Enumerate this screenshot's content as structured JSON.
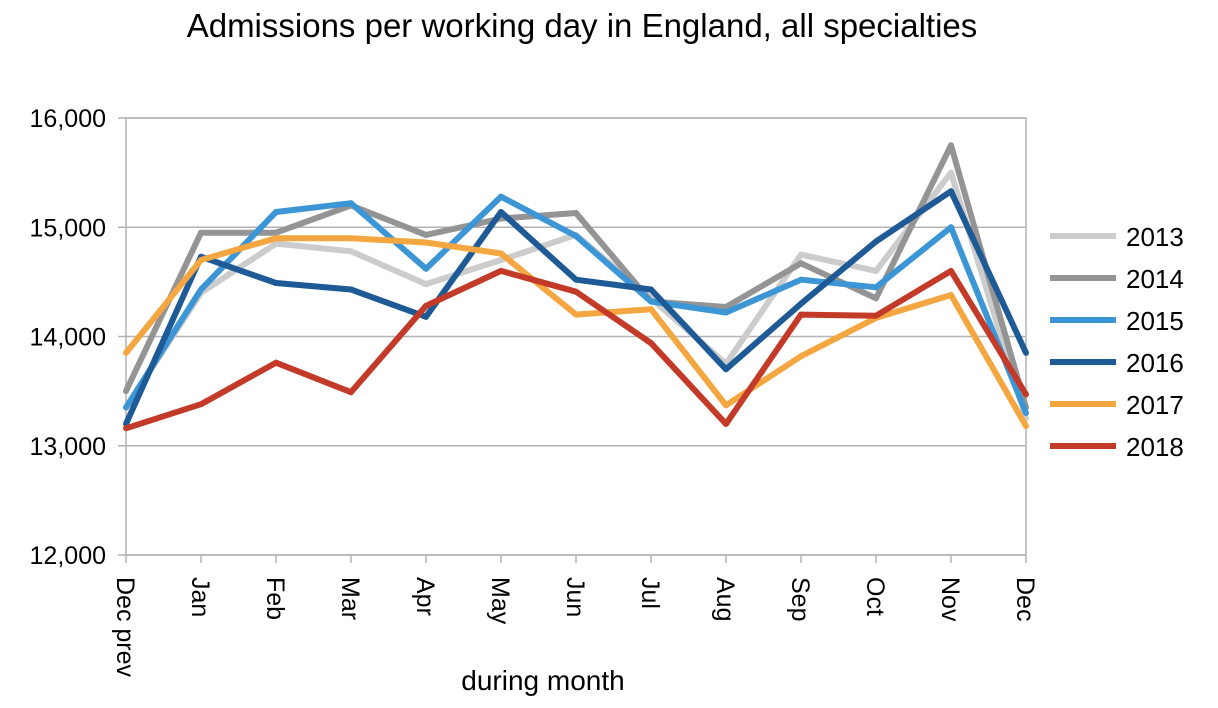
{
  "chart_data": {
    "type": "line",
    "title": "Admissions per working day in England, all specialties",
    "xlabel": "during month",
    "ylabel": "",
    "categories": [
      "Dec prev",
      "Jan",
      "Feb",
      "Mar",
      "Apr",
      "May",
      "Jun",
      "Jul",
      "Aug",
      "Sep",
      "Oct",
      "Nov",
      "Dec"
    ],
    "ylim": [
      12000,
      16000
    ],
    "yticks": [
      12000,
      13000,
      14000,
      15000,
      16000
    ],
    "ytick_labels": [
      "12,000",
      "13,000",
      "14,000",
      "15,000",
      "16,000"
    ],
    "grid": true,
    "legend_position": "right",
    "series": [
      {
        "name": "2013",
        "color": "#cccccc",
        "values": [
          13350,
          14400,
          14850,
          14780,
          14480,
          14700,
          14930,
          14350,
          13750,
          14750,
          14600,
          15500,
          13250
        ]
      },
      {
        "name": "2014",
        "color": "#949494",
        "values": [
          13500,
          14950,
          14950,
          15200,
          14930,
          15080,
          15130,
          14320,
          14270,
          14670,
          14350,
          15750,
          13350
        ]
      },
      {
        "name": "2015",
        "color": "#3c96d6",
        "values": [
          13350,
          14430,
          15140,
          15220,
          14620,
          15280,
          14920,
          14320,
          14220,
          14520,
          14450,
          15000,
          13300
        ]
      },
      {
        "name": "2016",
        "color": "#1e5a96",
        "values": [
          13200,
          14730,
          14490,
          14430,
          14180,
          15140,
          14520,
          14430,
          13700,
          14300,
          14870,
          15330,
          13850
        ]
      },
      {
        "name": "2017",
        "color": "#f4a640",
        "values": [
          13850,
          14700,
          14900,
          14900,
          14860,
          14760,
          14200,
          14250,
          13370,
          13820,
          14170,
          14380,
          13180
        ]
      },
      {
        "name": "2018",
        "color": "#c43a28",
        "values": [
          13160,
          13380,
          13760,
          13490,
          14280,
          14600,
          14410,
          13940,
          13200,
          14200,
          14190,
          14600,
          13470
        ]
      }
    ]
  }
}
